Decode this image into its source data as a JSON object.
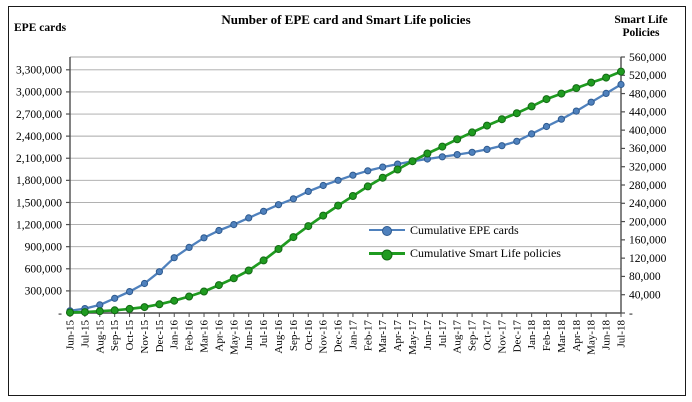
{
  "header": {
    "title": "Number of EPE card and Smart Life policies",
    "left_axis_title": "EPE cards",
    "right_axis_title_line1": "Smart Life",
    "right_axis_title_line2": "Policies"
  },
  "legend": {
    "epe_label": "Cumulative EPE cards",
    "smartlife_label": "Cumulative Smart Life policies"
  },
  "colors": {
    "epe_line": "#4F81BD",
    "epe_marker_edge": "#2E5A8F",
    "smartlife_line": "#1F9B20",
    "smartlife_marker_edge": "#136A14",
    "gridline": "#A6A6A6",
    "axis": "#4d4d4d"
  },
  "chart_data": {
    "type": "line",
    "title": "Number of EPE card and Smart Life policies",
    "categories": [
      "Jun-15",
      "Jul-15",
      "Aug-15",
      "Sep-15",
      "Oct-15",
      "Nov-15",
      "Dec-15",
      "Jan-16",
      "Feb-16",
      "Mar-16",
      "Apr-16",
      "May-16",
      "Jun-16",
      "Jul-16",
      "Aug-16",
      "Sep-16",
      "Oct-16",
      "Nov-16",
      "Dec-16",
      "Jan-17",
      "Feb-17",
      "Mar-17",
      "Apr-17",
      "May-17",
      "Jun-17",
      "Jul-17",
      "Aug-17",
      "Sep-17",
      "Oct-17",
      "Nov-17",
      "Dec-17",
      "Jan-18",
      "Feb-18",
      "Mar-18",
      "Apr-18",
      "May-18",
      "Jun-18",
      "Jul-18"
    ],
    "series": [
      {
        "name": "Cumulative EPE cards",
        "axis": "left",
        "values": [
          30000,
          60000,
          110000,
          200000,
          290000,
          400000,
          560000,
          750000,
          890000,
          1020000,
          1120000,
          1200000,
          1290000,
          1380000,
          1470000,
          1550000,
          1650000,
          1730000,
          1800000,
          1870000,
          1930000,
          1980000,
          2020000,
          2060000,
          2090000,
          2120000,
          2150000,
          2180000,
          2220000,
          2270000,
          2330000,
          2430000,
          2530000,
          2630000,
          2740000,
          2860000,
          2980000,
          3100000
        ]
      },
      {
        "name": "Cumulative Smart Life policies",
        "axis": "right",
        "values": [
          1000,
          2000,
          4000,
          6000,
          9000,
          13000,
          19000,
          27000,
          36000,
          47000,
          61000,
          76000,
          93000,
          115000,
          140000,
          166000,
          190000,
          213000,
          235000,
          256000,
          277000,
          296000,
          314000,
          332000,
          349000,
          364000,
          380000,
          395000,
          410000,
          424000,
          437000,
          452000,
          468000,
          480000,
          492000,
          504000,
          515000,
          528000
        ]
      }
    ],
    "left_axis": {
      "title": "EPE cards",
      "min": 0,
      "max": 3300000,
      "step": 300000,
      "tick_labels": [
        "-",
        "300,000",
        "600,000",
        "900,000",
        "1,200,000",
        "1,500,000",
        "1,800,000",
        "2,100,000",
        "2,400,000",
        "2,700,000",
        "3,000,000",
        "3,300,000"
      ]
    },
    "right_axis": {
      "title": "Smart Life Policies",
      "min": 0,
      "max": 560000,
      "step": 40000,
      "tick_labels": [
        "-",
        "40,000",
        "80,000",
        "120,000",
        "160,000",
        "200,000",
        "240,000",
        "280,000",
        "320,000",
        "360,000",
        "400,000",
        "440,000",
        "480,000",
        "520,000",
        "560,000"
      ]
    },
    "grid": "horizontal",
    "legend_position": "inside-right-middle"
  }
}
